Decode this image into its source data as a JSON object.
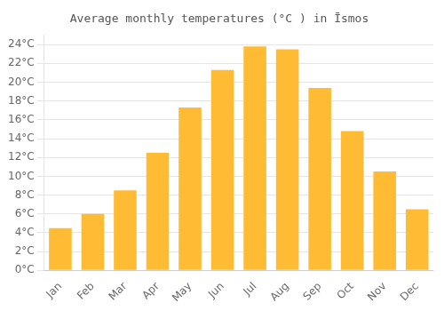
{
  "chart_data": {
    "type": "bar",
    "title": "Average monthly temperatures (°C ) in Īsmos",
    "categories": [
      "Jan",
      "Feb",
      "Mar",
      "Apr",
      "May",
      "Jun",
      "Jul",
      "Aug",
      "Sep",
      "Oct",
      "Nov",
      "Dec"
    ],
    "values": [
      4.5,
      6.0,
      8.5,
      12.5,
      17.3,
      21.3,
      23.8,
      23.5,
      19.4,
      14.8,
      10.5,
      6.5
    ],
    "color": "#FFBB33",
    "ylim": [
      0,
      25
    ],
    "yticks": [
      {
        "value": 0,
        "label": "0°C"
      },
      {
        "value": 2,
        "label": "2°C"
      },
      {
        "value": 4,
        "label": "4°C"
      },
      {
        "value": 6,
        "label": "6°C"
      },
      {
        "value": 8,
        "label": "8°C"
      },
      {
        "value": 10,
        "label": "10°C"
      },
      {
        "value": 12,
        "label": "12°C"
      },
      {
        "value": 14,
        "label": "14°C"
      },
      {
        "value": 16,
        "label": "16°C"
      },
      {
        "value": 18,
        "label": "18°C"
      },
      {
        "value": 20,
        "label": "20°C"
      },
      {
        "value": 22,
        "label": "22°C"
      },
      {
        "value": 24,
        "label": "24°C"
      }
    ],
    "grid": true
  }
}
